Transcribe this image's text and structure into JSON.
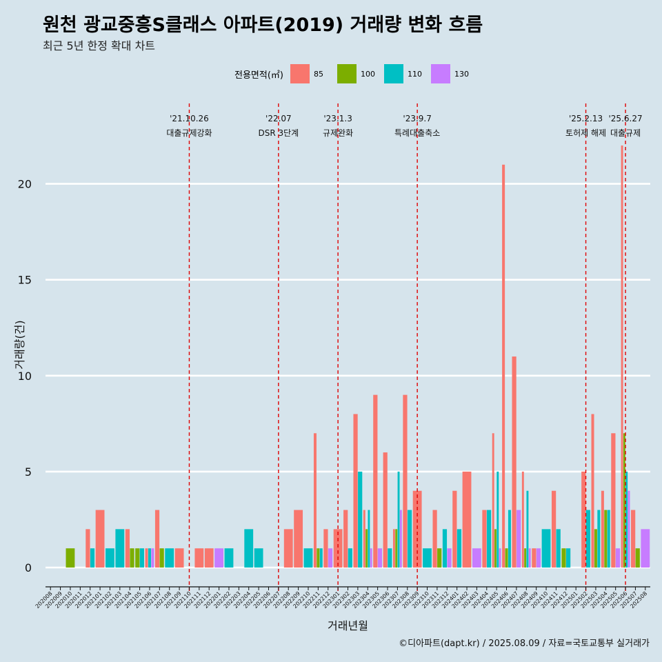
{
  "header": {
    "title": "원천 광교중흥S클래스 아파트(2019) 거래량 변화 흐름",
    "subtitle": "최근 5년 한정 확대 차트"
  },
  "caption": "©디아파트(dapt.kr) / 2025.08.09 / 자료=국토교통부 실거래가",
  "legend": {
    "title": "전용면적(㎡)",
    "items": [
      {
        "label": "85",
        "color": "#F8766D"
      },
      {
        "label": "100",
        "color": "#7CAE00"
      },
      {
        "label": "110",
        "color": "#00BFC4"
      },
      {
        "label": "130",
        "color": "#C77CFF"
      }
    ]
  },
  "chart_data": {
    "type": "bar",
    "xlabel": "거래년월",
    "ylabel": "거래량(건)",
    "ylim": [
      -1,
      24
    ],
    "yticks": [
      0,
      5,
      10,
      15,
      20
    ],
    "grid": "horizontal",
    "legend_position": "top",
    "categories": [
      "202008",
      "202009",
      "202010",
      "202011",
      "202012",
      "202101",
      "202102",
      "202103",
      "202104",
      "202105",
      "202106",
      "202107",
      "202108",
      "202109",
      "202110",
      "202111",
      "202112",
      "202201",
      "202202",
      "202203",
      "202204",
      "202205",
      "202206",
      "202207",
      "202208",
      "202209",
      "202210",
      "202211",
      "202212",
      "202301",
      "202302",
      "202303",
      "202304",
      "202305",
      "202306",
      "202307",
      "202308",
      "202309",
      "202310",
      "202311",
      "202312",
      "202401",
      "202402",
      "202403",
      "202404",
      "202405",
      "202406",
      "202407",
      "202408",
      "202409",
      "202410",
      "202411",
      "202412",
      "202501",
      "202502",
      "202503",
      "202504",
      "202505",
      "202506",
      "202507",
      "202508"
    ],
    "series": [
      {
        "name": "85",
        "color": "#F8766D",
        "values": [
          0,
          0,
          0,
          0,
          2,
          3,
          0,
          0,
          2,
          0,
          1,
          3,
          0,
          1,
          0,
          1,
          1,
          0,
          0,
          0,
          0,
          0,
          0,
          0,
          2,
          3,
          0,
          7,
          2,
          2,
          3,
          8,
          3,
          9,
          6,
          2,
          9,
          4,
          0,
          3,
          0,
          4,
          5,
          0,
          3,
          7,
          21,
          11,
          5,
          1,
          0,
          4,
          0,
          0,
          5,
          8,
          4,
          7,
          22,
          3,
          0
        ]
      },
      {
        "name": "100",
        "color": "#7CAE00",
        "values": [
          0,
          0,
          1,
          0,
          0,
          0,
          0,
          0,
          1,
          1,
          0,
          1,
          0,
          0,
          0,
          0,
          0,
          0,
          0,
          0,
          0,
          0,
          0,
          0,
          0,
          0,
          0,
          1,
          0,
          0,
          0,
          0,
          2,
          0,
          0,
          2,
          0,
          0,
          0,
          1,
          0,
          0,
          0,
          0,
          0,
          2,
          1,
          0,
          1,
          0,
          0,
          0,
          1,
          0,
          0,
          2,
          3,
          0,
          7,
          1,
          0
        ]
      },
      {
        "name": "110",
        "color": "#00BFC4",
        "values": [
          0,
          0,
          0,
          0,
          1,
          0,
          1,
          2,
          0,
          1,
          1,
          0,
          1,
          0,
          0,
          0,
          0,
          0,
          1,
          0,
          2,
          1,
          0,
          0,
          0,
          0,
          1,
          1,
          0,
          0,
          1,
          5,
          3,
          0,
          1,
          5,
          3,
          0,
          1,
          0,
          2,
          2,
          0,
          0,
          3,
          5,
          3,
          0,
          4,
          0,
          2,
          2,
          1,
          0,
          3,
          3,
          3,
          0,
          5,
          0,
          0
        ]
      },
      {
        "name": "130",
        "color": "#C77CFF",
        "values": [
          0,
          0,
          0,
          0,
          0,
          0,
          0,
          0,
          0,
          0,
          1,
          0,
          0,
          0,
          0,
          0,
          0,
          1,
          0,
          0,
          0,
          0,
          0,
          0,
          0,
          0,
          0,
          0,
          1,
          0,
          0,
          0,
          1,
          1,
          0,
          3,
          0,
          0,
          0,
          0,
          1,
          0,
          0,
          1,
          0,
          1,
          0,
          3,
          1,
          1,
          0,
          0,
          0,
          0,
          0,
          0,
          0,
          1,
          4,
          0,
          2
        ]
      }
    ],
    "annotations": [
      {
        "date_label": "'21.10.26",
        "text": "대출규제강화",
        "x": "202110"
      },
      {
        "date_label": "'22.07",
        "text": "DSR 3단계",
        "x": "202207"
      },
      {
        "date_label": "'23.1.3",
        "text": "규제완화",
        "x": "202301"
      },
      {
        "date_label": "'23.9.7",
        "text": "특례대출축소",
        "x": "202309"
      },
      {
        "date_label": "'25.2.13",
        "text": "토허제 해제",
        "x": "202502"
      },
      {
        "date_label": "'25.6.27",
        "text": "대출규제",
        "x": "202506"
      }
    ]
  }
}
